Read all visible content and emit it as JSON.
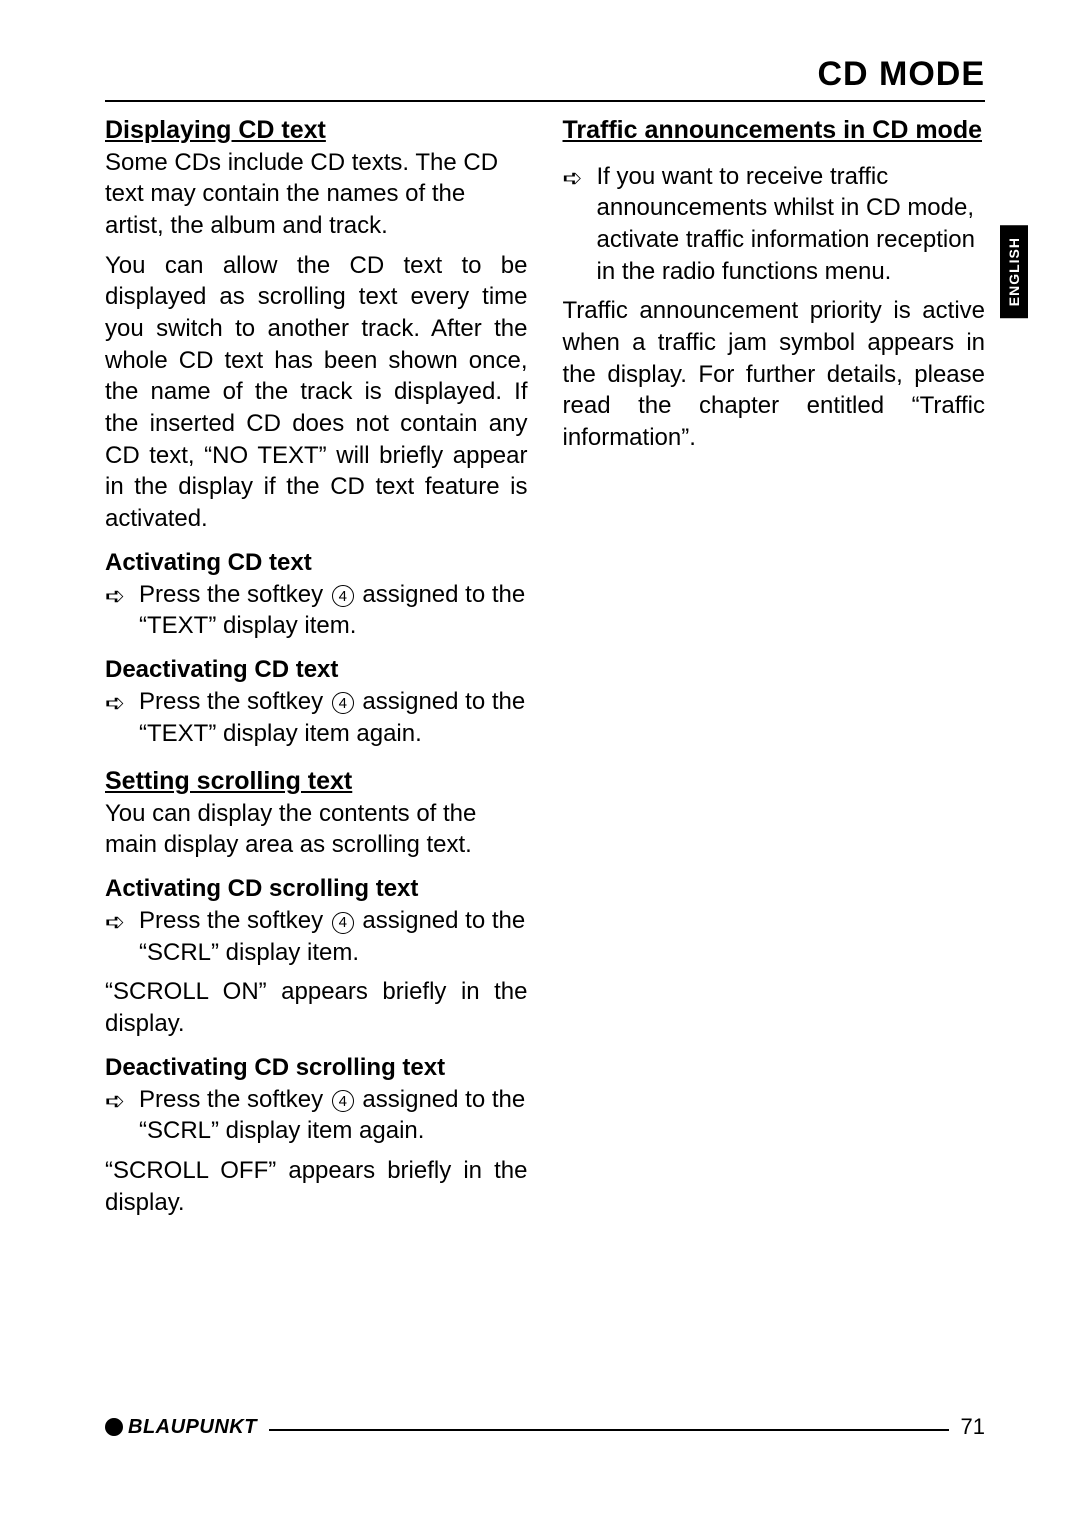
{
  "header": {
    "title": "CD MODE"
  },
  "lang_tab": "ENGLISH",
  "left": {
    "h1": "Displaying CD text",
    "p1": "Some CDs include CD texts. The CD text may contain the names of the artist, the album and track.",
    "p2": "You can allow the CD text to be displayed as scrolling text every time you switch to another track. After the whole CD text has been shown once, the name of the track is displayed. If the inserted CD does not contain any CD text, “NO TEXT” will briefly appear in the display if the CD text feature is activated.",
    "s1_h": "Activating CD text",
    "s1_a": "Press the softkey ",
    "s1_num": "4",
    "s1_b": " assigned to the “TEXT” display item.",
    "s2_h": "Deactivating CD text",
    "s2_a": "Press the softkey ",
    "s2_num": "4",
    "s2_b": " assigned to the “TEXT” display item again.",
    "h2": "Setting scrolling text",
    "p3": "You can display the contents of the main display area as scrolling text.",
    "s3_h": "Activating CD scrolling text",
    "s3_a": "Press the softkey ",
    "s3_num": "4",
    "s3_b": " assigned to the “SCRL” display item.",
    "p4": "“SCROLL ON” appears briefly in the display.",
    "s4_h": "Deactivating CD scrolling text",
    "s4_a": "Press the softkey ",
    "s4_num": "4",
    "s4_b": " assigned to the “SCRL” display item again.",
    "p5": "“SCROLL OFF” appears briefly in the display."
  },
  "right": {
    "h1": "Traffic announcements in CD mode",
    "step1": "If you want to receive traffic announcements whilst in CD mode, activate traffic information reception in the radio functions menu.",
    "p1": "Traffic announcement priority is active when a traffic jam symbol appears in the display. For further details, please read the chapter entitled “Traffic information”."
  },
  "footer": {
    "brand": "BLAUPUNKT",
    "page": "71"
  }
}
